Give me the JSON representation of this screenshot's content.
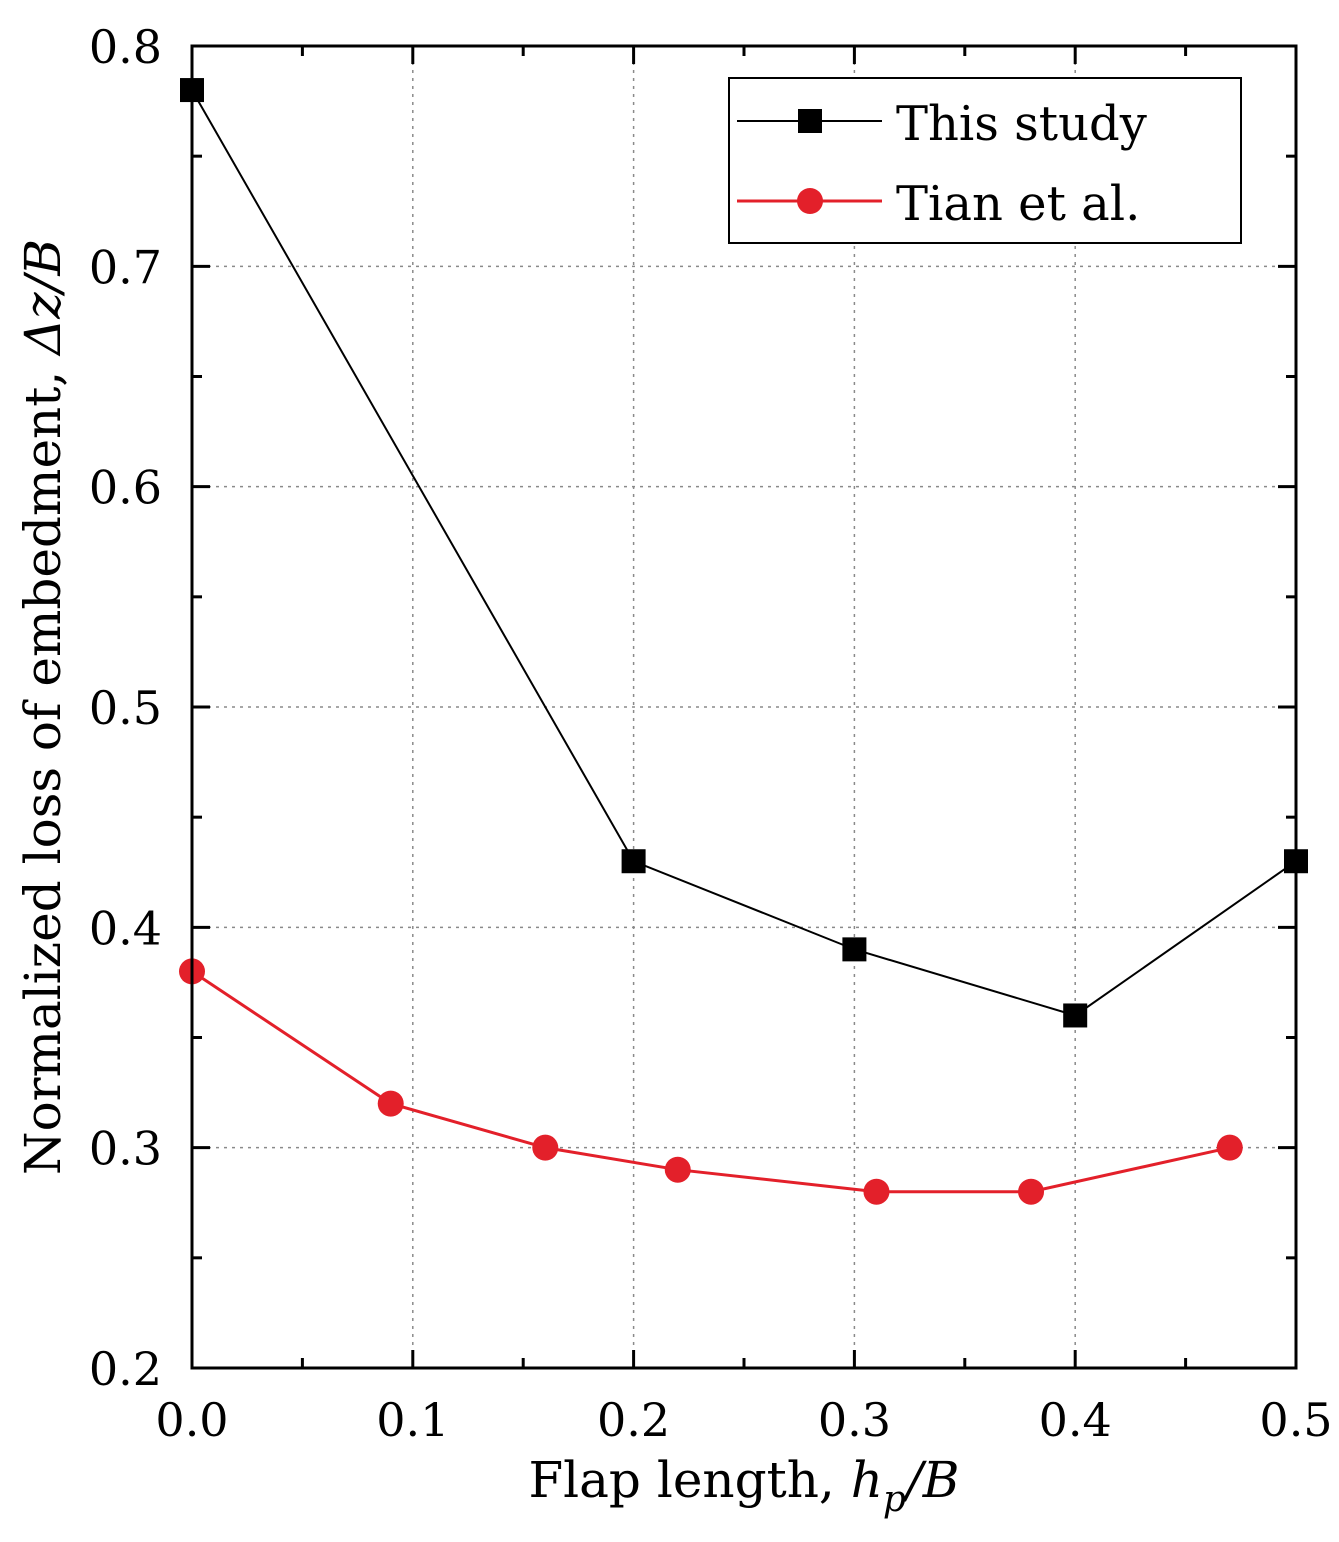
{
  "chart_data": {
    "type": "line",
    "title": "",
    "xlabel": {
      "prefix": "Flap length, ",
      "var": "h",
      "sub": "p",
      "suffix": "/B"
    },
    "ylabel": {
      "prefix": "Normalized loss of embedment, ",
      "var": "Δz/B"
    },
    "xlim": [
      0.0,
      0.5
    ],
    "ylim": [
      0.2,
      0.8
    ],
    "xticks": [
      0.0,
      0.1,
      0.2,
      0.3,
      0.4,
      0.5
    ],
    "xtick_labels": [
      "0.0",
      "0.1",
      "0.2",
      "0.3",
      "0.4",
      "0.5"
    ],
    "yticks": [
      0.2,
      0.3,
      0.4,
      0.5,
      0.6,
      0.7,
      0.8
    ],
    "ytick_labels": [
      "0.2",
      "0.3",
      "0.4",
      "0.5",
      "0.6",
      "0.7",
      "0.8"
    ],
    "grid": true,
    "legend_position": "top-right",
    "series": [
      {
        "name": "This study",
        "color": "#000000",
        "marker": "square",
        "x": [
          0.0,
          0.2,
          0.3,
          0.4,
          0.5
        ],
        "y": [
          0.78,
          0.43,
          0.39,
          0.36,
          0.43
        ]
      },
      {
        "name": "Tian et al.",
        "color": "#e3202a",
        "marker": "circle",
        "x": [
          0.0,
          0.09,
          0.16,
          0.22,
          0.31,
          0.38,
          0.47
        ],
        "y": [
          0.38,
          0.32,
          0.3,
          0.29,
          0.28,
          0.28,
          0.3
        ]
      }
    ]
  }
}
